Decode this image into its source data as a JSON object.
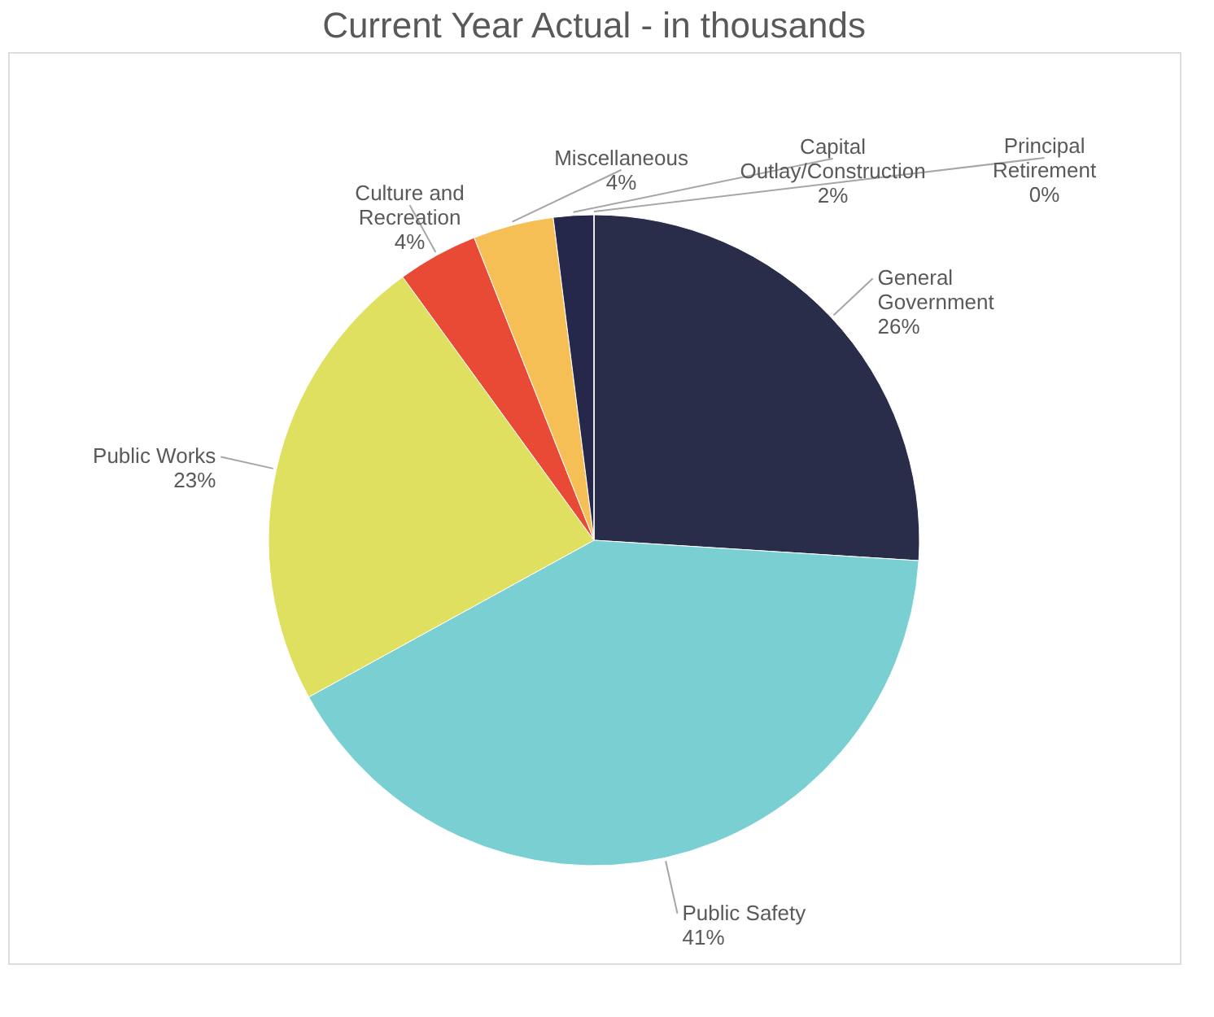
{
  "chart_data": {
    "type": "pie",
    "title": "Current Year Actual - in thousands",
    "categories": [
      "General Government",
      "Public Safety",
      "Public Works",
      "Culture and Recreation",
      "Miscellaneous",
      "Capital Outlay/Construction",
      "Principal Retirement"
    ],
    "values": [
      26,
      41,
      23,
      4,
      4,
      2,
      0
    ],
    "value_labels": [
      "26%",
      "41%",
      "23%",
      "4%",
      "4%",
      "2%",
      "0%"
    ],
    "colors": [
      "#2a2d4a",
      "#79cfd1",
      "#dfe060",
      "#e84a35",
      "#f5bf55",
      "#25284a",
      "#b0b0b0"
    ],
    "legend": false
  }
}
